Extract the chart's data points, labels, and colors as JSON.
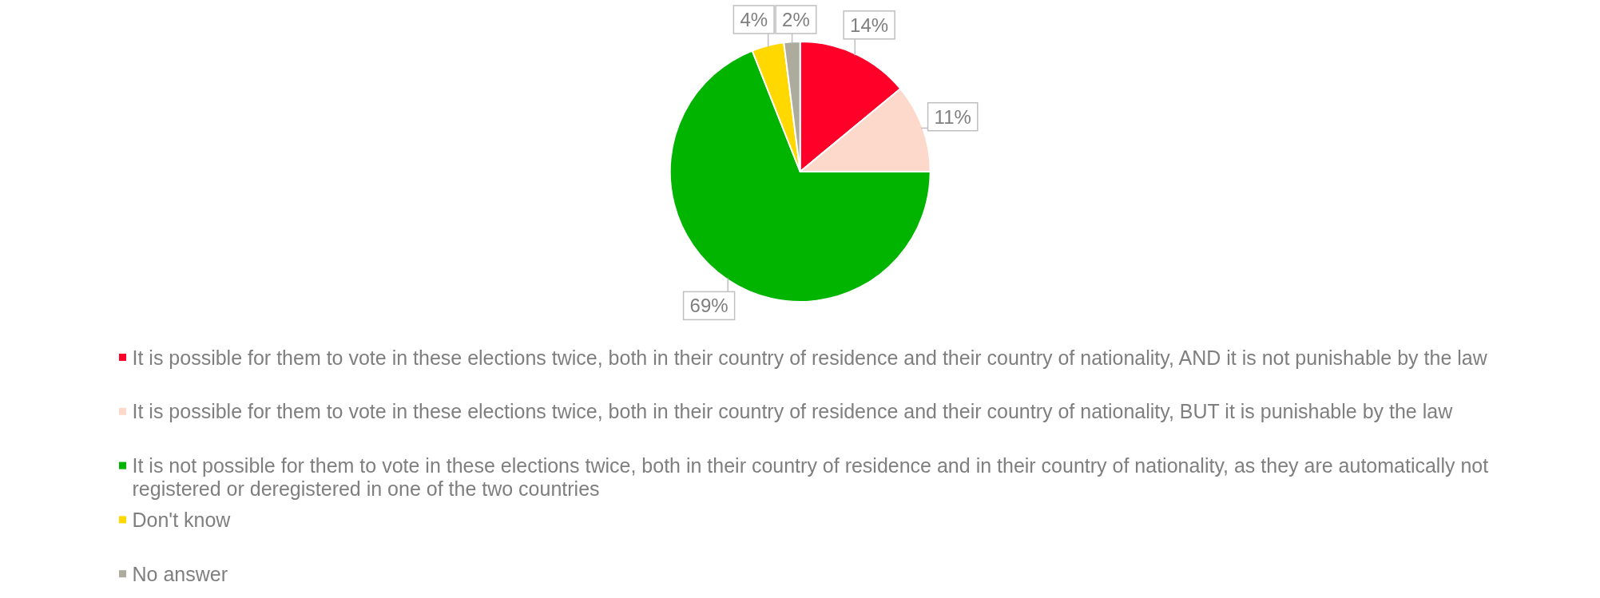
{
  "chart_data": {
    "type": "pie",
    "categories": [
      "It is possible for them to vote in these elections twice, both in their country of residence and their country of nationality, AND it is not punishable by the law",
      "It is possible for them to vote in these elections twice, both in their country of residence and their country of nationality, BUT it is punishable by the law",
      "It is not possible for them to vote in these elections twice, both in their country of residence and in their country of nationality, as they are automatically not registered or deregistered in one of the two countries",
      "Don't know",
      "No answer"
    ],
    "values": [
      14,
      11,
      69,
      4,
      2
    ],
    "colors": [
      "#ff0029",
      "#fdd9cb",
      "#00b400",
      "#ffd800",
      "#acab9e"
    ],
    "value_labels": [
      "14%",
      "11%",
      "69%",
      "4%",
      "2%"
    ],
    "legend": "bottom"
  }
}
